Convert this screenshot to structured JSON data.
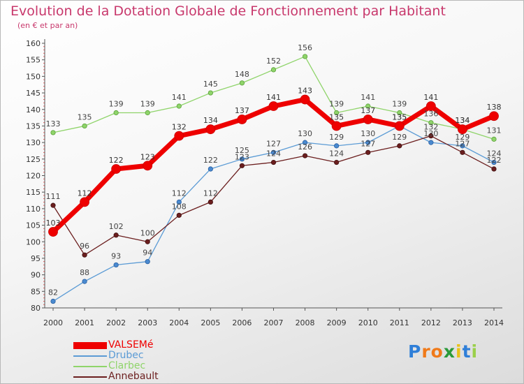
{
  "header": {
    "title": "Evolution de la Dotation Globale de Fonctionnement par Habitant",
    "subtitle": "(en € et par an)"
  },
  "colors": {
    "title": "#c8386c",
    "VALSEMé": "#ee0000",
    "Drubec": "#5b9bd5",
    "Clarbec": "#8fd46a",
    "Annebault": "#6b1e1e",
    "axis": "#555555"
  },
  "chart_data": {
    "type": "line",
    "title": "Evolution de la Dotation Globale de Fonctionnement par Habitant",
    "subtitle": "(en € et par an)",
    "xlabel": "",
    "ylabel": "",
    "x": [
      "2000",
      "2001",
      "2002",
      "2003",
      "2004",
      "2005",
      "2006",
      "2007",
      "2008",
      "2009",
      "2010",
      "2011",
      "2012",
      "2013",
      "2014"
    ],
    "y_ticks": [
      80,
      85,
      90,
      95,
      100,
      105,
      110,
      115,
      120,
      125,
      130,
      135,
      140,
      145,
      150,
      155,
      160
    ],
    "ylim": [
      80,
      160
    ],
    "grid": false,
    "legend": "bottom-left",
    "series": [
      {
        "name": "Clarbec",
        "values": [
          133,
          135,
          139,
          139,
          141,
          145,
          148,
          152,
          156,
          139,
          141,
          139,
          136,
          134,
          131
        ]
      },
      {
        "name": "Drubec",
        "values": [
          82,
          88,
          93,
          94,
          112,
          122,
          125,
          127,
          130,
          129,
          130,
          135,
          130,
          129,
          124
        ]
      },
      {
        "name": "Annebault",
        "values": [
          111,
          96,
          102,
          100,
          108,
          112,
          123,
          124,
          126,
          124,
          127,
          129,
          132,
          127,
          122
        ]
      },
      {
        "name": "VALSEMé",
        "values": [
          103,
          112,
          122,
          123,
          132,
          134,
          137,
          141,
          143,
          135,
          137,
          135,
          141,
          134,
          138
        ]
      }
    ]
  },
  "legend": {
    "items": [
      {
        "name": "VALSEMé",
        "label": "VALSEMé"
      },
      {
        "name": "Drubec",
        "label": "Drubec"
      },
      {
        "name": "Clarbec",
        "label": "Clarbec"
      },
      {
        "name": "Annebault",
        "label": "Annebault"
      }
    ]
  },
  "brand": {
    "letters": [
      "P",
      "r",
      "o",
      "x",
      "i",
      "t",
      "i"
    ],
    "letter_colors": [
      "#2f7fd8",
      "#f07a1a",
      "#f07a1a",
      "#2a9a3a",
      "#e8c21a",
      "#2f7fd8",
      "#9ad04a"
    ]
  }
}
